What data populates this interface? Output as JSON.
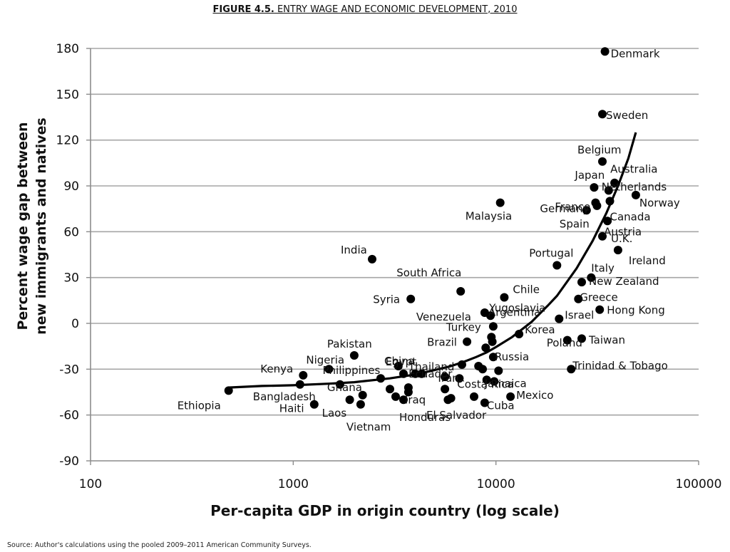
{
  "figure": {
    "number": "FIGURE 4.5.",
    "title": "ENTRY WAGE AND ECONOMIC DEVELOPMENT, 2010",
    "source": "Source: Author's calculations using the pooled 2009–2011 American Community Surveys."
  },
  "chart_data": {
    "type": "scatter",
    "title": "ENTRY WAGE AND ECONOMIC DEVELOPMENT, 2010",
    "xlabel": "Per-capita GDP in origin country (log scale)",
    "ylabel": "Percent wage gap between new immigrants and natives",
    "x_scale": "log",
    "xlim": [
      100,
      100000
    ],
    "ylim": [
      -90,
      180
    ],
    "x_ticks": [
      100,
      1000,
      10000,
      100000
    ],
    "x_tick_labels": [
      "100",
      "1000",
      "10000",
      "100000"
    ],
    "y_ticks": [
      180,
      150,
      120,
      90,
      60,
      30,
      0,
      -30,
      -60,
      -90
    ],
    "y_tick_labels": [
      "180",
      "150",
      "120",
      "90",
      "60",
      "30",
      "0",
      "-30",
      "-60",
      "-90"
    ],
    "grid": "horizontal",
    "legend": "none",
    "colors": {
      "points": "#000000",
      "grid": "#a6a6a6",
      "axis": "#8c8c8c",
      "text": "#111111"
    },
    "points": [
      {
        "label": "Denmark",
        "x": 34500,
        "y": 178
      },
      {
        "label": "Sweden",
        "x": 33500,
        "y": 137
      },
      {
        "label": "Belgium",
        "x": 33500,
        "y": 106
      },
      {
        "label": "Australia",
        "x": 38500,
        "y": 92
      },
      {
        "label": "Netherlands",
        "x": 36000,
        "y": 87
      },
      {
        "label": "Japan",
        "x": 30500,
        "y": 89
      },
      {
        "label": "France",
        "x": 31000,
        "y": 79
      },
      {
        "label": "Germany",
        "x": 31500,
        "y": 77
      },
      {
        "label": "Norway",
        "x": 49000,
        "y": 84
      },
      {
        "label": "Spain",
        "x": 28000,
        "y": 74
      },
      {
        "label": "Canada",
        "x": 36500,
        "y": 80
      },
      {
        "label": "Austria",
        "x": 35500,
        "y": 67
      },
      {
        "label": "U.K.",
        "x": 33500,
        "y": 57
      },
      {
        "label": "Malaysia",
        "x": 10500,
        "y": 79
      },
      {
        "label": "Ireland",
        "x": 40000,
        "y": 48
      },
      {
        "label": "India",
        "x": 2450,
        "y": 42
      },
      {
        "label": "Portugal",
        "x": 20000,
        "y": 38
      },
      {
        "label": "Italy",
        "x": 29500,
        "y": 30
      },
      {
        "label": "New Zealand",
        "x": 26500,
        "y": 27
      },
      {
        "label": "South Africa",
        "x": 6700,
        "y": 21
      },
      {
        "label": "Chile",
        "x": 11000,
        "y": 17
      },
      {
        "label": "Greece",
        "x": 25500,
        "y": 16
      },
      {
        "label": "Syria",
        "x": 3800,
        "y": 16
      },
      {
        "label": "Venezuela",
        "x": 8800,
        "y": 7
      },
      {
        "label": "Argentina",
        "x": 9400,
        "y": 5
      },
      {
        "label": "Hong Kong",
        "x": 32500,
        "y": 9
      },
      {
        "label": "Israel",
        "x": 20500,
        "y": 3
      },
      {
        "label": "Turkey",
        "x": 9700,
        "y": -2
      },
      {
        "label": "Korea",
        "x": 13000,
        "y": -7
      },
      {
        "label": "Brazil",
        "x": 7200,
        "y": -12
      },
      {
        "label": "Taiwan",
        "x": 26500,
        "y": -10
      },
      {
        "label": "Poland",
        "x": 22500,
        "y": -11
      },
      {
        "label": "Yugoslavia",
        "x": 9500,
        "y": -9
      },
      {
        "label": "Pakistan",
        "x": 2000,
        "y": -21
      },
      {
        "label": "Egypt",
        "x": 3300,
        "y": -28
      },
      {
        "label": "Thailand",
        "x": 6800,
        "y": -27
      },
      {
        "label": "Russia",
        "x": 9700,
        "y": -22
      },
      {
        "label": "Nigeria",
        "x": 1500,
        "y": -30
      },
      {
        "label": "Philippines",
        "x": 4000,
        "y": -33
      },
      {
        "label": "China",
        "x": 3500,
        "y": -33
      },
      {
        "label": "Costa Rica",
        "x": 10300,
        "y": -31
      },
      {
        "label": "Trinidad & Tobago",
        "x": 23500,
        "y": -30
      },
      {
        "label": "Kenya",
        "x": 1120,
        "y": -34
      },
      {
        "label": "Ecuador",
        "x": 5600,
        "y": -35
      },
      {
        "label": "Iran",
        "x": 6600,
        "y": -36
      },
      {
        "label": "Jamaica",
        "x": 9000,
        "y": -37
      },
      {
        "label": "Ghana",
        "x": 1700,
        "y": -40
      },
      {
        "label": "Bangladesh",
        "x": 1080,
        "y": -40
      },
      {
        "label": "Ethiopia",
        "x": 480,
        "y": -44
      },
      {
        "label": "Iraq",
        "x": 3700,
        "y": -45
      },
      {
        "label": "El Salvador",
        "x": 7800,
        "y": -48
      },
      {
        "label": "Mexico",
        "x": 11800,
        "y": -48
      },
      {
        "label": "Honduras",
        "x": 3500,
        "y": -50
      },
      {
        "label": "Cuba",
        "x": 8800,
        "y": -52
      },
      {
        "label": "Haiti",
        "x": 1270,
        "y": -53
      },
      {
        "label": "Vietnam",
        "x": 2150,
        "y": -53
      },
      {
        "label": "Laos",
        "x": 1900,
        "y": -50
      },
      {
        "x": 2200,
        "y": -47
      },
      {
        "x": 2700,
        "y": -36
      },
      {
        "x": 3000,
        "y": -43
      },
      {
        "x": 3200,
        "y": -48
      },
      {
        "x": 3700,
        "y": -42
      },
      {
        "x": 4300,
        "y": -33
      },
      {
        "x": 5600,
        "y": -43
      },
      {
        "x": 5800,
        "y": -50
      },
      {
        "x": 6000,
        "y": -49
      },
      {
        "x": 8200,
        "y": -28
      },
      {
        "x": 8600,
        "y": -30
      },
      {
        "x": 9600,
        "y": -12
      },
      {
        "x": 8900,
        "y": -16
      },
      {
        "x": 9800,
        "y": -38
      }
    ],
    "trendline": {
      "x": [
        480,
        700,
        1000,
        1500,
        2000,
        3000,
        4000,
        5000,
        6000,
        7000,
        8000,
        9000,
        10000,
        12000,
        15000,
        18000,
        20000,
        25000,
        30000,
        35000,
        40000,
        45000,
        49000
      ],
      "y": [
        -42,
        -41,
        -40.5,
        -39.5,
        -38.5,
        -36,
        -33.5,
        -30.5,
        -28,
        -25,
        -22,
        -19,
        -15.5,
        -9,
        1,
        11.5,
        18,
        36,
        54,
        72,
        90,
        108,
        125
      ]
    }
  }
}
